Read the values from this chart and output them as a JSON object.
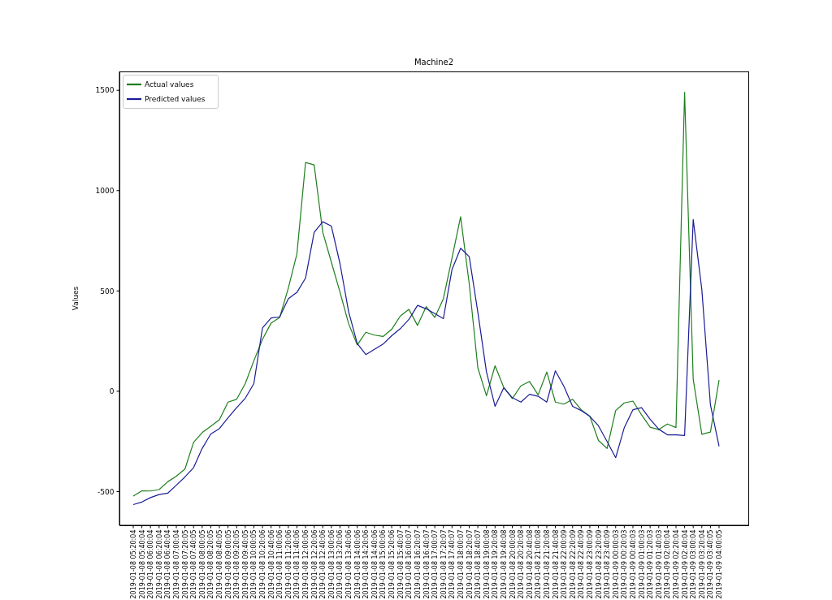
{
  "chart_data": {
    "type": "line",
    "title": "Machine2",
    "ylabel": "Values",
    "categories": [
      "2019-01-08 05:20:04",
      "2019-01-08 05:40:04",
      "2019-01-08 06:00:04",
      "2019-01-08 06:20:04",
      "2019-01-08 06:40:04",
      "2019-01-08 07:00:04",
      "2019-01-08 07:20:05",
      "2019-01-08 07:40:05",
      "2019-01-08 08:00:05",
      "2019-01-08 08:20:05",
      "2019-01-08 08:40:05",
      "2019-01-08 09:00:05",
      "2019-01-08 09:20:05",
      "2019-01-08 09:40:05",
      "2019-01-08 10:00:05",
      "2019-01-08 10:20:06",
      "2019-01-08 10:40:06",
      "2019-01-08 11:00:06",
      "2019-01-08 11:20:06",
      "2019-01-08 11:40:06",
      "2019-01-08 12:00:06",
      "2019-01-08 12:20:06",
      "2019-01-08 12:40:06",
      "2019-01-08 13:00:06",
      "2019-01-08 13:20:06",
      "2019-01-08 13:40:06",
      "2019-01-08 14:00:06",
      "2019-01-08 14:20:06",
      "2019-01-08 14:40:06",
      "2019-01-08 15:00:06",
      "2019-01-08 15:20:06",
      "2019-01-08 15:40:07",
      "2019-01-08 16:00:07",
      "2019-01-08 16:20:07",
      "2019-01-08 16:40:07",
      "2019-01-08 17:00:07",
      "2019-01-08 17:20:07",
      "2019-01-08 17:40:07",
      "2019-01-08 18:00:07",
      "2019-01-08 18:20:07",
      "2019-01-08 18:40:07",
      "2019-01-08 19:00:08",
      "2019-01-08 19:20:08",
      "2019-01-08 19:40:08",
      "2019-01-08 20:00:08",
      "2019-01-08 20:20:08",
      "2019-01-08 20:40:08",
      "2019-01-08 21:00:08",
      "2019-01-08 21:20:08",
      "2019-01-08 21:40:08",
      "2019-01-08 22:00:09",
      "2019-01-08 22:20:09",
      "2019-01-08 22:40:09",
      "2019-01-08 23:00:09",
      "2019-01-08 23:20:09",
      "2019-01-08 23:40:09",
      "2019-01-09 00:00:03",
      "2019-01-09 00:20:03",
      "2019-01-09 00:40:03",
      "2019-01-09 01:00:03",
      "2019-01-09 01:20:03",
      "2019-01-09 01:40:03",
      "2019-01-09 02:00:04",
      "2019-01-09 02:20:04",
      "2019-01-09 02:40:04",
      "2019-01-09 03:00:04",
      "2019-01-09 03:20:04",
      "2019-01-09 03:40:05",
      "2019-01-09 04:00:05"
    ],
    "series": [
      {
        "name": "Actual values",
        "color": "#1e7f1e",
        "values": [
          -522,
          -496,
          -497,
          -490,
          -451,
          -423,
          -388,
          -255,
          -206,
          -174,
          -142,
          -54,
          -40,
          38,
          152,
          259,
          340,
          368,
          514,
          685,
          1140,
          1128,
          792,
          643,
          494,
          337,
          231,
          294,
          280,
          273,
          309,
          375,
          408,
          328,
          422,
          368,
          461,
          664,
          870,
          536,
          117,
          -22,
          127,
          20,
          -36,
          27,
          49,
          -18,
          96,
          -54,
          -64,
          -40,
          -92,
          -125,
          -245,
          -285,
          -96,
          -58,
          -49,
          -117,
          -179,
          -191,
          -163,
          -181,
          1490,
          60,
          -214,
          -203,
          56
        ]
      },
      {
        "name": "Predicted values",
        "color": "#1c1c96",
        "values": [
          -565,
          -552,
          -530,
          -515,
          -508,
          -468,
          -427,
          -381,
          -285,
          -213,
          -186,
          -132,
          -82,
          -35,
          38,
          316,
          365,
          371,
          461,
          493,
          564,
          792,
          845,
          823,
          636,
          397,
          238,
          183,
          209,
          235,
          277,
          312,
          358,
          428,
          411,
          387,
          362,
          607,
          713,
          671,
          394,
          96,
          -75,
          17,
          -32,
          -54,
          -15,
          -25,
          -54,
          102,
          24,
          -75,
          -96,
          -125,
          -172,
          -250,
          -331,
          -181,
          -92,
          -82,
          -139,
          -189,
          -217,
          -217,
          -220,
          856,
          507,
          -68,
          -274
        ]
      }
    ],
    "ylim": [
      -668,
      1594
    ],
    "yticks": [
      -500,
      0,
      500,
      1000,
      1500
    ],
    "legend": "top left"
  }
}
